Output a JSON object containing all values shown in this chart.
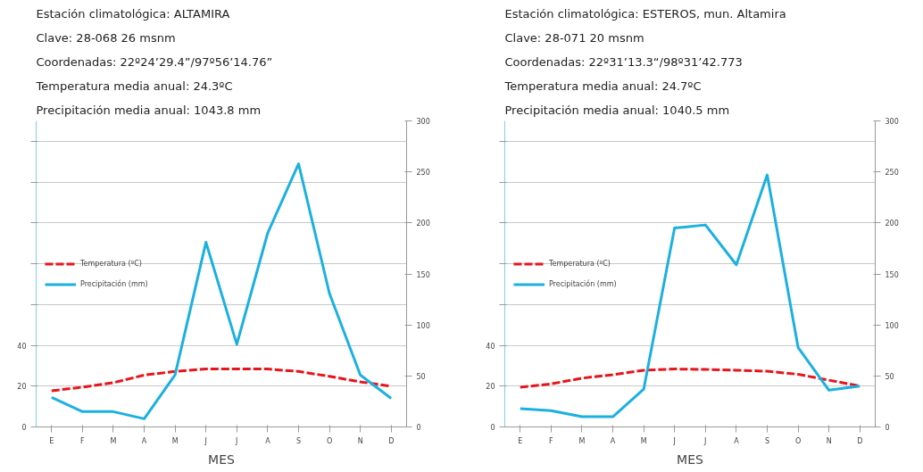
{
  "chart_data": [
    {
      "type": "line",
      "title": "Estación climatológica:  ALTAMIRA",
      "annotations": [
        "Clave: 28-068  26 msnm",
        "Coordenadas:  22º24’29.4”/97º56’14.76”",
        "Temperatura media anual: 24.3ºC",
        "Precipitación media anual:  1043.8 mm"
      ],
      "xlabel": "MES",
      "categories": [
        "E",
        "F",
        "M",
        "A",
        "M",
        "J",
        "J",
        "A",
        "S",
        "O",
        "N",
        "D"
      ],
      "series": [
        {
          "name": "Temperatura (ºC)",
          "color": "#e8141c",
          "line_style": "dashed",
          "values": [
            17.7,
            19.5,
            21.7,
            25.4,
            27.2,
            28.4,
            28.4,
            28.4,
            27.2,
            24.8,
            22.1,
            19.9
          ]
        },
        {
          "name": "Precipitación (mm)",
          "color": "#1cb0e0",
          "line_style": "solid",
          "axis": "y2",
          "values": [
            29,
            15,
            15,
            8,
            51,
            181,
            81,
            190,
            258,
            131,
            51,
            28
          ]
        }
      ],
      "ylim": [
        0,
        150
      ],
      "yticks": [
        0,
        20,
        40,
        {
          "value": 60,
          "label": null
        },
        {
          "value": 80,
          "label": null
        },
        {
          "value": 100,
          "label": null
        },
        {
          "value": 120,
          "label": null
        },
        {
          "value": 140,
          "label": null
        }
      ],
      "y2lim": [
        0,
        300
      ],
      "y2ticks": [
        0,
        50,
        100,
        150,
        200,
        250,
        300
      ],
      "grid": "y",
      "legend": "left"
    },
    {
      "type": "line",
      "title": "Estación climatológica:  ESTEROS, mun. Altamira",
      "annotations": [
        "Clave: 28-071  20 msnm",
        "Coordenadas:  22º31’13.3“/98º31’42.773",
        "Temperatura media anual: 24.7ºC",
        "Precipitación media anual:  1040.5 mm"
      ],
      "xlabel": "MES",
      "categories": [
        "E",
        "F",
        "M",
        "A",
        "M",
        "J",
        "J",
        "A",
        "S",
        "O",
        "N",
        "D"
      ],
      "series": [
        {
          "name": "Temperatura (ºC)",
          "color": "#e8141c",
          "line_style": "dashed",
          "values": [
            19.5,
            21.1,
            23.9,
            25.6,
            27.8,
            28.4,
            28.2,
            27.8,
            27.3,
            25.8,
            22.9,
            20.1
          ]
        },
        {
          "name": "Precipitación (mm)",
          "color": "#1cb0e0",
          "line_style": "solid",
          "axis": "y2",
          "values": [
            18,
            16,
            10,
            10,
            37,
            195,
            198,
            159,
            247,
            78,
            36,
            40
          ]
        }
      ],
      "ylim": [
        0,
        150
      ],
      "yticks": [
        0,
        20,
        40,
        {
          "value": 60,
          "label": null
        },
        {
          "value": 80,
          "label": null
        },
        {
          "value": 100,
          "label": null
        },
        {
          "value": 120,
          "label": null
        },
        {
          "value": 140,
          "label": null
        }
      ],
      "y2lim": [
        0,
        300
      ],
      "y2ticks": [
        0,
        50,
        100,
        150,
        200,
        250,
        300
      ],
      "grid": "y",
      "legend": "left"
    }
  ]
}
